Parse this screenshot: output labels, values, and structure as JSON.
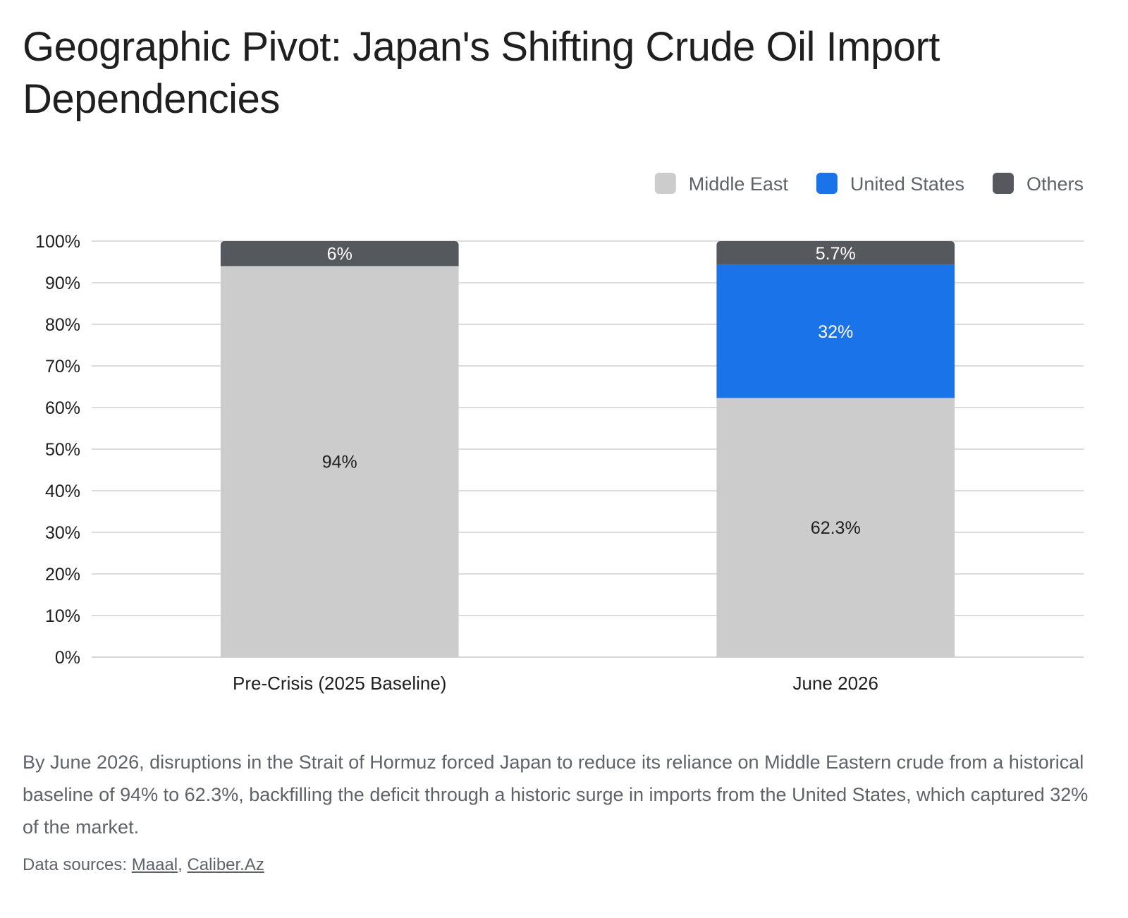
{
  "title": "Geographic Pivot: Japan's Shifting Crude Oil Import Dependencies",
  "caption": "By June 2026, disruptions in the Strait of Hormuz forced Japan to reduce its reliance on Middle Eastern crude from a historical baseline of 94% to 62.3%, backfilling the deficit through a historic surge in imports from the United States, which captured 32% of the market.",
  "sources": {
    "label": "Data sources:",
    "separator": ",",
    "links": [
      "Maaal",
      "Caliber.Az"
    ]
  },
  "chart_data": {
    "type": "bar",
    "stacked": true,
    "percent_axis": true,
    "categories": [
      "Pre-Crisis (2025 Baseline)",
      "June 2026"
    ],
    "series": [
      {
        "name": "Middle East",
        "values": [
          94,
          62.3
        ],
        "labels": [
          "94%",
          "62.3%"
        ],
        "color": "#cccccc",
        "label_color": "#1f1f1f"
      },
      {
        "name": "United States",
        "values": [
          0,
          32
        ],
        "labels": [
          "",
          "32%"
        ],
        "color": "#1a73e8",
        "label_color": "#ffffff"
      },
      {
        "name": "Others",
        "values": [
          6,
          5.7
        ],
        "labels": [
          "6%",
          "5.7%"
        ],
        "color": "#55585d",
        "label_color": "#ffffff"
      }
    ],
    "ylim": [
      0,
      100
    ],
    "yticks": [
      "0%",
      "10%",
      "20%",
      "30%",
      "40%",
      "50%",
      "60%",
      "70%",
      "80%",
      "90%",
      "100%"
    ],
    "grid": true,
    "legend_position": "top-right",
    "colors": {
      "gridline": "#c8c8c8",
      "axis_text": "#1f1f1f",
      "legend_text": "#5f6368"
    }
  }
}
